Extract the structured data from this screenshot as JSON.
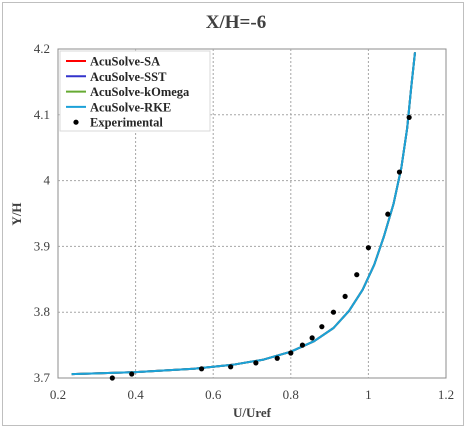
{
  "chart_data": {
    "type": "line",
    "title": "X/H=-6",
    "xlabel": "U/Uref",
    "ylabel": "Y/H",
    "xlim": [
      0.2,
      1.2
    ],
    "ylim": [
      3.7,
      4.2
    ],
    "xticks": [
      0.2,
      0.4,
      0.6,
      0.8,
      1.0,
      1.2
    ],
    "xtick_labels": [
      "0.2",
      "0.4",
      "0.6",
      "0.8",
      "1",
      "1.2"
    ],
    "yticks": [
      3.7,
      3.8,
      3.9,
      4.0,
      4.1,
      4.2
    ],
    "ytick_labels": [
      "3.7",
      "3.8",
      "3.9",
      "4",
      "4.1",
      "4.2"
    ],
    "grid": true,
    "legend_position": "top-left",
    "series": [
      {
        "name": "AcuSolve-SA",
        "color": "#ff0000",
        "marker": "line",
        "x": [
          0.235,
          0.4,
          0.55,
          0.65,
          0.73,
          0.8,
          0.86,
          0.91,
          0.95,
          0.985,
          1.015,
          1.04,
          1.065,
          1.085,
          1.1,
          1.11,
          1.12
        ],
        "y": [
          3.706,
          3.709,
          3.714,
          3.72,
          3.728,
          3.74,
          3.756,
          3.776,
          3.802,
          3.834,
          3.872,
          3.915,
          3.965,
          4.02,
          4.08,
          4.14,
          4.195
        ]
      },
      {
        "name": "AcuSolve-SST",
        "color": "#3333cc",
        "marker": "line",
        "x": [
          0.235,
          0.4,
          0.55,
          0.65,
          0.73,
          0.8,
          0.86,
          0.91,
          0.95,
          0.985,
          1.015,
          1.04,
          1.065,
          1.085,
          1.1,
          1.11,
          1.12
        ],
        "y": [
          3.706,
          3.709,
          3.714,
          3.72,
          3.728,
          3.74,
          3.756,
          3.776,
          3.802,
          3.834,
          3.872,
          3.915,
          3.965,
          4.02,
          4.08,
          4.14,
          4.195
        ]
      },
      {
        "name": "AcuSolve-kOmega",
        "color": "#66aa33",
        "marker": "line",
        "x": [
          0.235,
          0.4,
          0.55,
          0.65,
          0.73,
          0.8,
          0.86,
          0.91,
          0.95,
          0.985,
          1.015,
          1.04,
          1.065,
          1.085,
          1.1,
          1.11,
          1.12
        ],
        "y": [
          3.706,
          3.709,
          3.714,
          3.72,
          3.728,
          3.74,
          3.756,
          3.776,
          3.802,
          3.834,
          3.872,
          3.915,
          3.965,
          4.02,
          4.08,
          4.14,
          4.195
        ]
      },
      {
        "name": "AcuSolve-RKE",
        "color": "#1ba1d8",
        "marker": "line",
        "x": [
          0.235,
          0.4,
          0.55,
          0.65,
          0.73,
          0.8,
          0.86,
          0.91,
          0.95,
          0.985,
          1.015,
          1.04,
          1.065,
          1.085,
          1.1,
          1.11,
          1.12
        ],
        "y": [
          3.706,
          3.709,
          3.714,
          3.72,
          3.728,
          3.74,
          3.756,
          3.776,
          3.802,
          3.834,
          3.872,
          3.915,
          3.965,
          4.02,
          4.08,
          4.14,
          4.195
        ]
      },
      {
        "name": "Experimental",
        "color": "#000000",
        "marker": "dot",
        "x": [
          0.34,
          0.39,
          0.57,
          0.645,
          0.71,
          0.765,
          0.8,
          0.83,
          0.855,
          0.88,
          0.91,
          0.94,
          0.97,
          1.0,
          1.05,
          1.08,
          1.105
        ],
        "y": [
          3.7,
          3.706,
          3.714,
          3.717,
          3.723,
          3.73,
          3.738,
          3.75,
          3.761,
          3.778,
          3.8,
          3.824,
          3.857,
          3.898,
          3.949,
          4.013,
          4.096
        ]
      }
    ]
  }
}
